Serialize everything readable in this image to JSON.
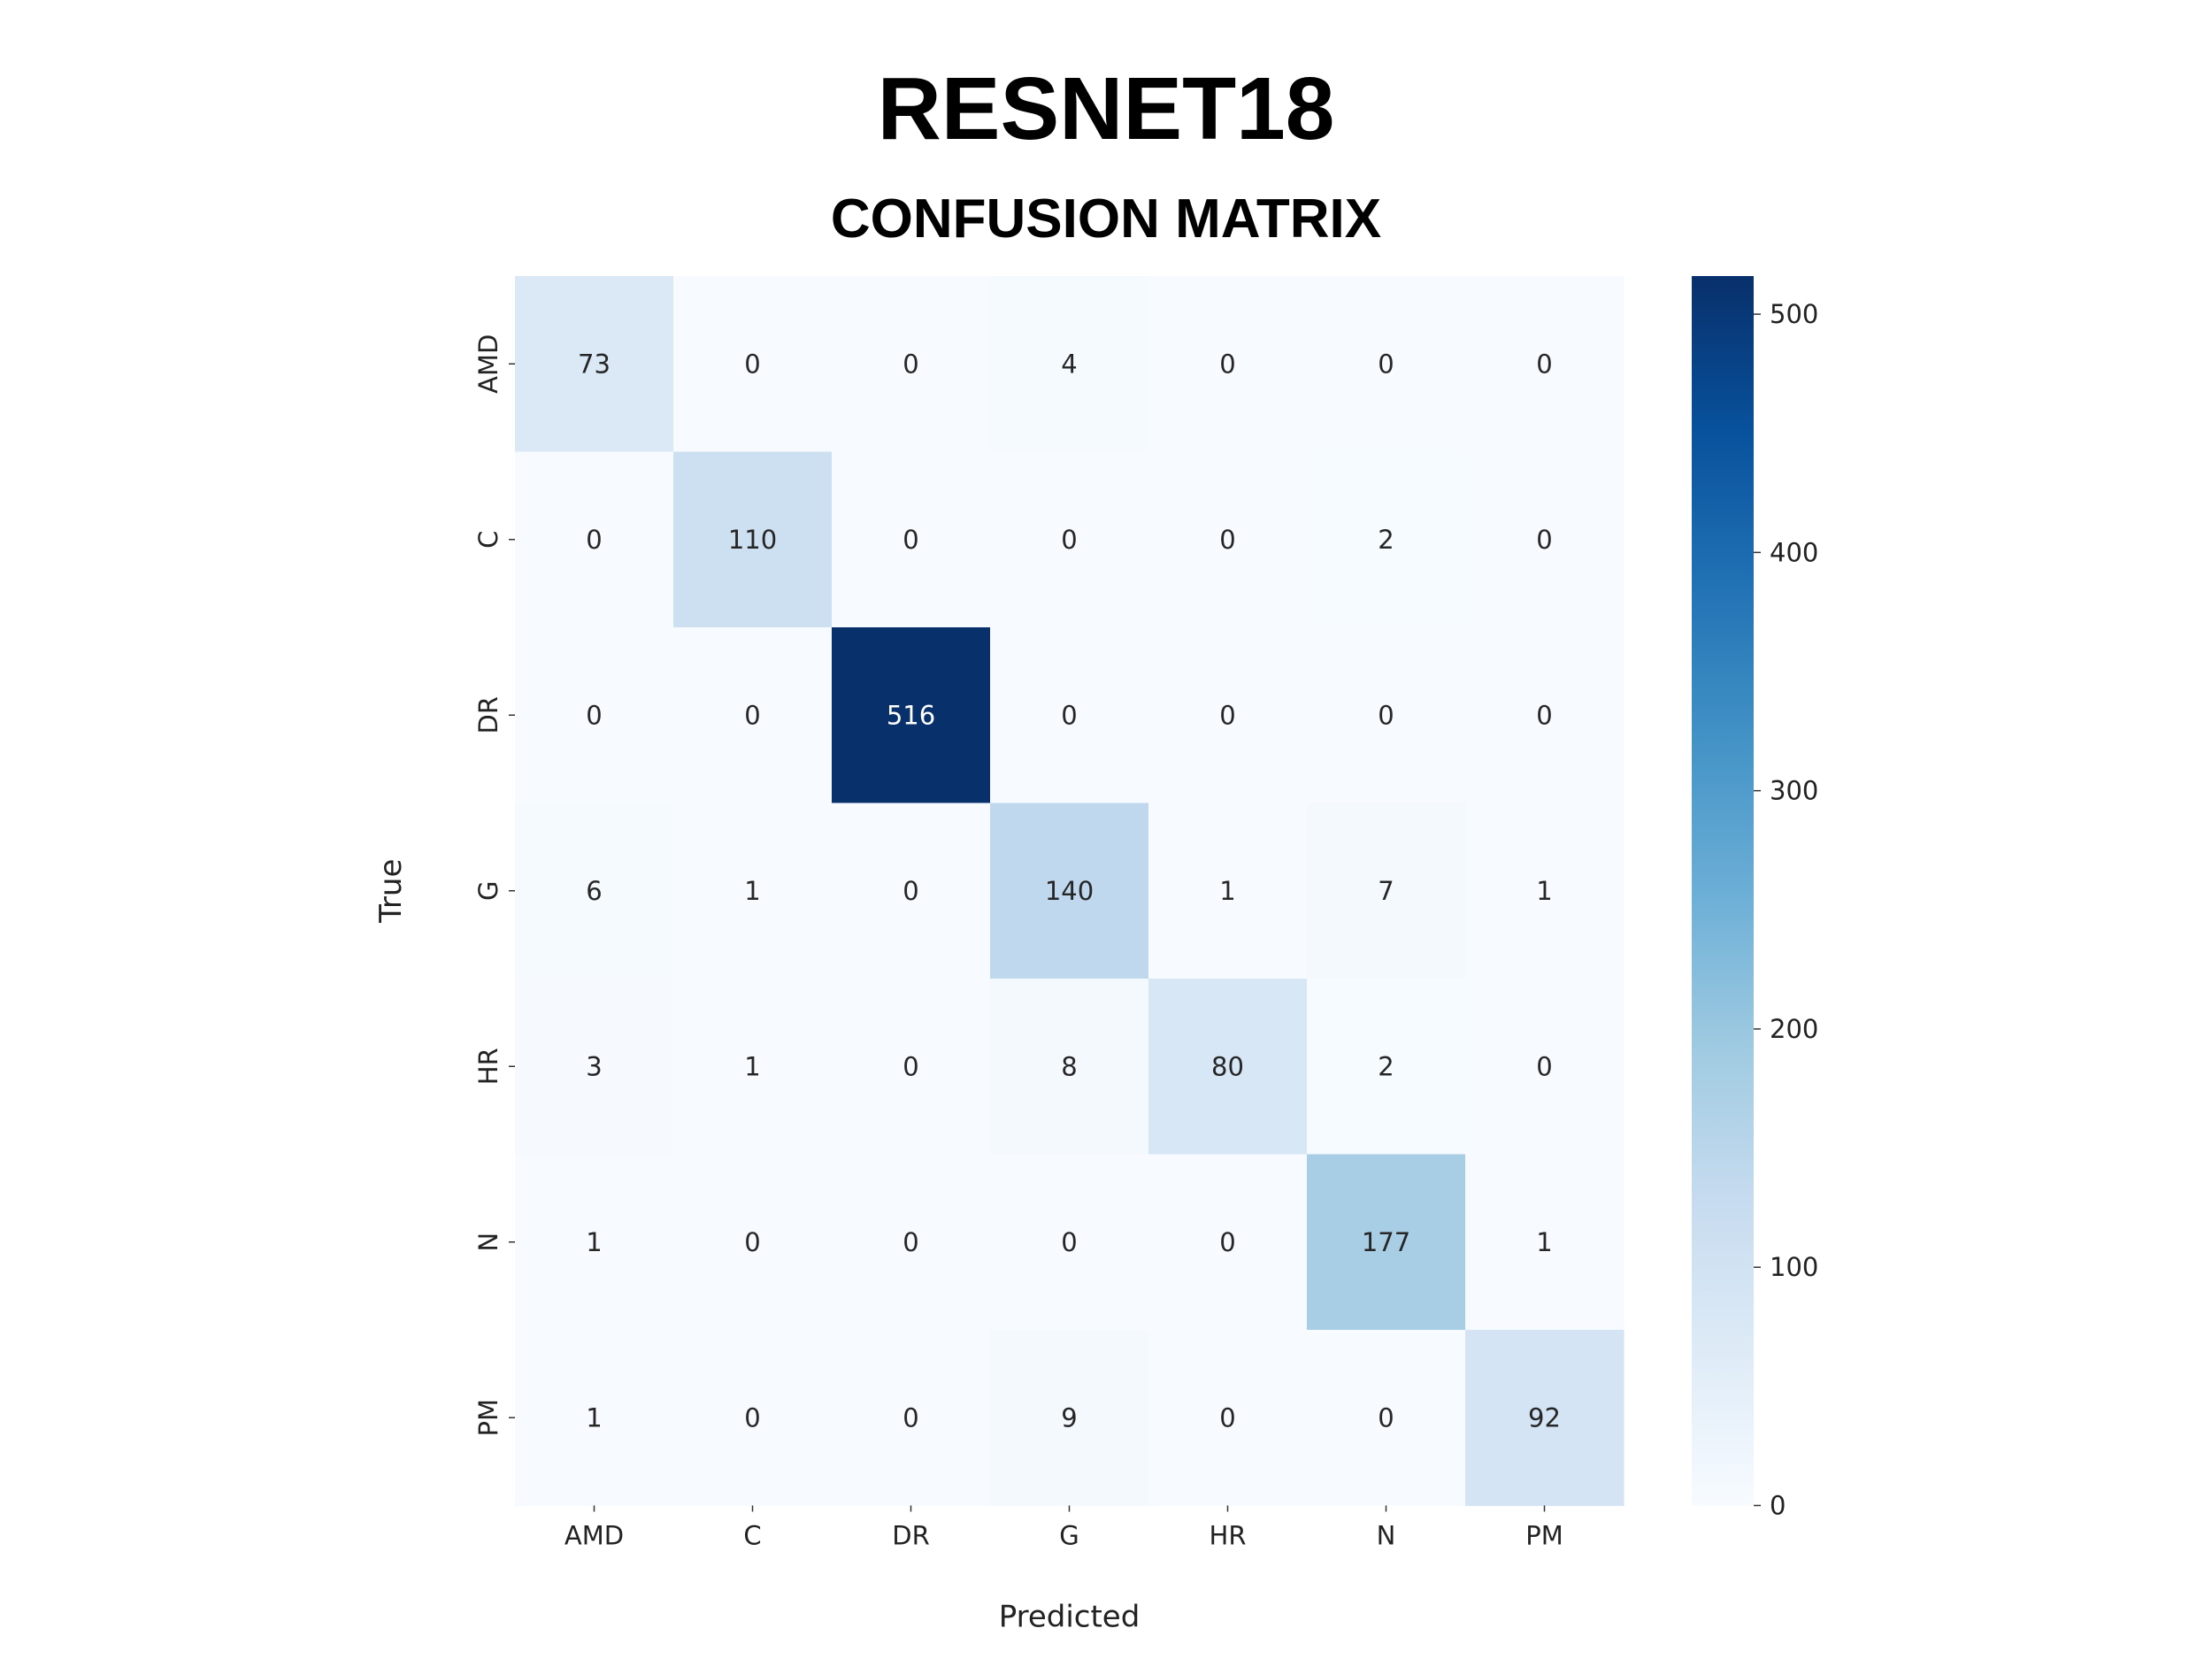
{
  "title": "RESNET18",
  "subtitle": "CONFUSION MATRIX",
  "chart_data": {
    "type": "heatmap",
    "title": "CONFUSION MATRIX",
    "xlabel": "Predicted",
    "ylabel": "True",
    "x_categories": [
      "AMD",
      "C",
      "DR",
      "G",
      "HR",
      "N",
      "PM"
    ],
    "y_categories": [
      "AMD",
      "C",
      "DR",
      "G",
      "HR",
      "N",
      "PM"
    ],
    "matrix": [
      [
        73,
        0,
        0,
        4,
        0,
        0,
        0
      ],
      [
        0,
        110,
        0,
        0,
        0,
        2,
        0
      ],
      [
        0,
        0,
        516,
        0,
        0,
        0,
        0
      ],
      [
        6,
        1,
        0,
        140,
        1,
        7,
        1
      ],
      [
        3,
        1,
        0,
        8,
        80,
        2,
        0
      ],
      [
        1,
        0,
        0,
        0,
        0,
        177,
        1
      ],
      [
        1,
        0,
        0,
        9,
        0,
        0,
        92
      ]
    ],
    "colorscale": "Blues",
    "colorbar": {
      "min": 0,
      "max": 516,
      "ticks": [
        0,
        100,
        200,
        300,
        400,
        500
      ]
    }
  }
}
